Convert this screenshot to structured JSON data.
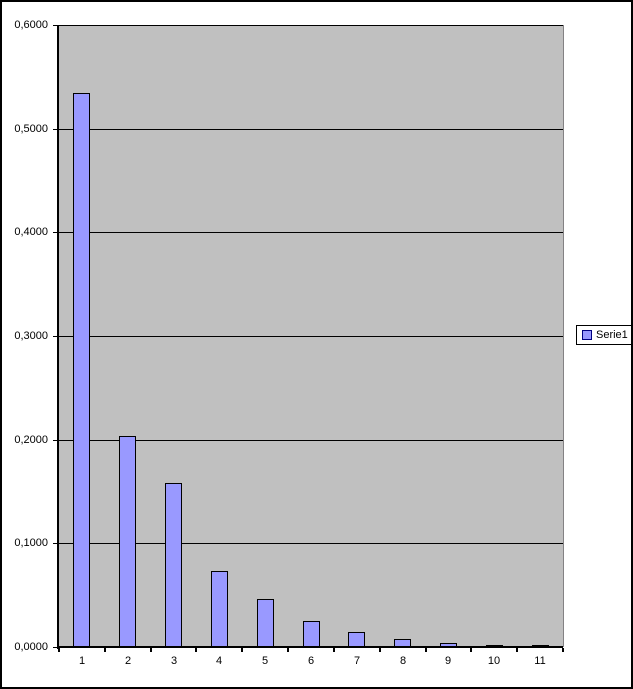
{
  "chart_data": {
    "type": "bar",
    "title": "",
    "xlabel": "",
    "ylabel": "",
    "categories": [
      "1",
      "2",
      "3",
      "4",
      "5",
      "6",
      "7",
      "8",
      "9",
      "10",
      "11"
    ],
    "series": [
      {
        "name": "Serie1",
        "values": [
          0.534,
          0.204,
          0.158,
          0.073,
          0.046,
          0.025,
          0.014,
          0.008,
          0.004,
          0.002,
          0.001
        ]
      }
    ],
    "ylim": [
      0,
      0.6
    ],
    "ytick_step": 0.1,
    "ytick_labels": [
      "0,0000",
      "0,1000",
      "0,2000",
      "0,3000",
      "0,4000",
      "0,5000",
      "0,6000"
    ],
    "decimal_separator": ",",
    "grid": true,
    "legend": {
      "position": "right",
      "entries": [
        "Serie1"
      ]
    },
    "colors": {
      "bar_fill": "#9999FF",
      "bar_border": "#000000",
      "plot_bg": "#C0C0C0",
      "background": "#FFFFFF",
      "axis": "#000000",
      "gridline": "#000000",
      "legend_border": "#000000",
      "legend_marker_border": "#000080"
    }
  }
}
